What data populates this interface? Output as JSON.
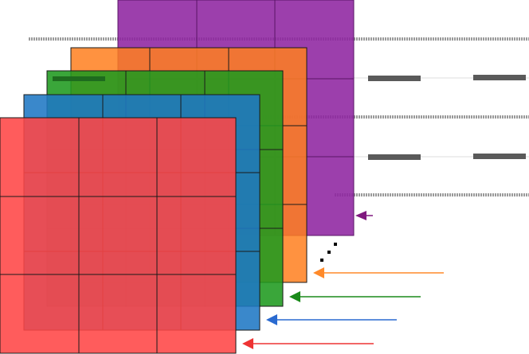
{
  "diagram": {
    "grid_rows": 3,
    "grid_cols": 3,
    "layers": [
      {
        "id": "purple",
        "color": "#8e24a0",
        "grid_line": "#5a1466",
        "arrow": "#80197f"
      },
      {
        "id": "orange",
        "color": "#ff7f1e",
        "grid_line": "#1a1a1a",
        "arrow": "#ff8a2a"
      },
      {
        "id": "green",
        "color": "#1f9a1f",
        "grid_line": "#1a1a1a",
        "arrow": "#1a8a1a"
      },
      {
        "id": "blue",
        "color": "#1f77c4",
        "grid_line": "#1a1a1a",
        "arrow": "#2a6ad0"
      },
      {
        "id": "red",
        "color": "#ff4646",
        "grid_line": "#1a1a1a",
        "arrow": "#ee3333"
      }
    ],
    "ellipsis_dot_color": "#000000",
    "background_line_color": "#9a9a9a",
    "dash_color": "#5a5a5a"
  }
}
